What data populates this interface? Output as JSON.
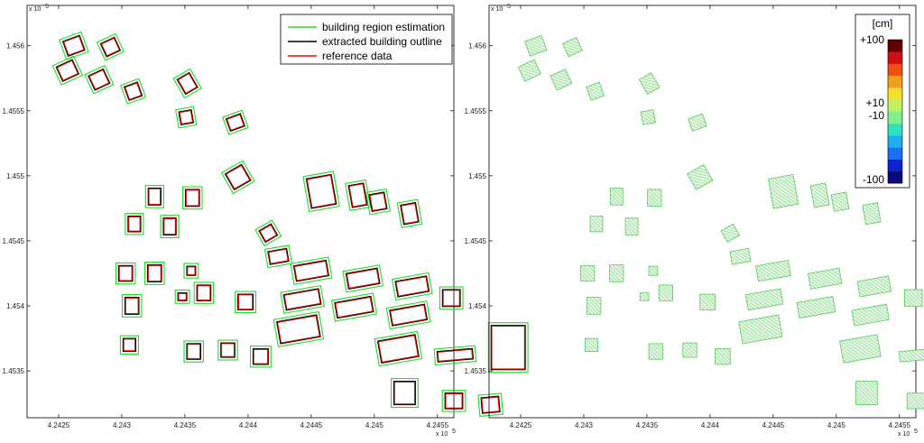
{
  "chart_data": [
    {
      "type": "scatter",
      "title": "",
      "xlabel": "",
      "ylabel": "",
      "x_ticks": [
        "4.2425",
        "4.243",
        "4.2435",
        "4.244",
        "4.2445",
        "4.245",
        "4.2455"
      ],
      "y_ticks": [
        "1.456",
        "1.4555",
        "1.455",
        "1.4545",
        "1.454",
        "1.4535"
      ],
      "x_exponent": "x 10",
      "x_exponent_power": "5",
      "y_exponent": "x 10",
      "y_exponent_power": "5",
      "xlim": [
        424225,
        424563
      ],
      "ylim": [
        145314,
        145631
      ],
      "legend_position": "top-right",
      "series": [
        {
          "name": "building region estimation",
          "color": "#22dd22"
        },
        {
          "name": "extracted building outline",
          "color": "#000000"
        },
        {
          "name": "reference data",
          "color": "#dd1111"
        }
      ],
      "buildings": [
        {
          "x": 424262,
          "y": 145600,
          "w": 14,
          "h": 12,
          "a": -20
        },
        {
          "x": 424291,
          "y": 145599,
          "w": 12,
          "h": 11,
          "a": -25
        },
        {
          "x": 424257,
          "y": 145581,
          "w": 14,
          "h": 12,
          "a": -25
        },
        {
          "x": 424282,
          "y": 145574,
          "w": 13,
          "h": 12,
          "a": -25
        },
        {
          "x": 424309,
          "y": 145565,
          "w": 11,
          "h": 11,
          "a": -20
        },
        {
          "x": 424352,
          "y": 145571,
          "w": 11,
          "h": 13,
          "a": -30
        },
        {
          "x": 424351,
          "y": 145545,
          "w": 10,
          "h": 10,
          "a": -10
        },
        {
          "x": 424390,
          "y": 145541,
          "w": 12,
          "h": 10,
          "a": -20
        },
        {
          "x": 424392,
          "y": 145499,
          "w": 15,
          "h": 14,
          "a": -30
        },
        {
          "x": 424326,
          "y": 145484,
          "w": 10,
          "h": 13,
          "a": 0
        },
        {
          "x": 424356,
          "y": 145483,
          "w": 11,
          "h": 13,
          "a": 0
        },
        {
          "x": 424310,
          "y": 145463,
          "w": 10,
          "h": 12,
          "a": 0
        },
        {
          "x": 424338,
          "y": 145461,
          "w": 10,
          "h": 13,
          "a": 0
        },
        {
          "x": 424416,
          "y": 145456,
          "w": 11,
          "h": 10,
          "a": -30
        },
        {
          "x": 424424,
          "y": 145438,
          "w": 15,
          "h": 10,
          "a": -10
        },
        {
          "x": 424303,
          "y": 145425,
          "w": 11,
          "h": 12,
          "a": 0
        },
        {
          "x": 424326,
          "y": 145425,
          "w": 11,
          "h": 13,
          "a": 0
        },
        {
          "x": 424355,
          "y": 145427,
          "w": 7,
          "h": 7,
          "a": 0
        },
        {
          "x": 424365,
          "y": 145410,
          "w": 11,
          "h": 12,
          "a": 0
        },
        {
          "x": 424348,
          "y": 145407,
          "w": 7,
          "h": 6,
          "a": 0
        },
        {
          "x": 424308,
          "y": 145400,
          "w": 11,
          "h": 13,
          "a": 0
        },
        {
          "x": 424398,
          "y": 145403,
          "w": 12,
          "h": 12,
          "a": 0
        },
        {
          "x": 424306,
          "y": 145370,
          "w": 10,
          "h": 10,
          "a": 0
        },
        {
          "x": 424357,
          "y": 145365,
          "w": 11,
          "h": 12,
          "a": 0
        },
        {
          "x": 424384,
          "y": 145366,
          "w": 11,
          "h": 11,
          "a": 0
        },
        {
          "x": 424410,
          "y": 145361,
          "w": 12,
          "h": 12,
          "a": 0
        },
        {
          "x": 424458,
          "y": 145488,
          "w": 20,
          "h": 23,
          "a": -10
        },
        {
          "x": 424487,
          "y": 145485,
          "w": 12,
          "h": 17,
          "a": -10
        },
        {
          "x": 424503,
          "y": 145480,
          "w": 12,
          "h": 13,
          "a": -10
        },
        {
          "x": 424528,
          "y": 145471,
          "w": 12,
          "h": 15,
          "a": -10
        },
        {
          "x": 424450,
          "y": 145427,
          "w": 26,
          "h": 12,
          "a": -10
        },
        {
          "x": 424491,
          "y": 145421,
          "w": 25,
          "h": 12,
          "a": -10
        },
        {
          "x": 424530,
          "y": 145415,
          "w": 25,
          "h": 12,
          "a": -10
        },
        {
          "x": 424443,
          "y": 145405,
          "w": 28,
          "h": 12,
          "a": -10
        },
        {
          "x": 424484,
          "y": 145399,
          "w": 29,
          "h": 12,
          "a": -10
        },
        {
          "x": 424527,
          "y": 145393,
          "w": 28,
          "h": 12,
          "a": -10
        },
        {
          "x": 424440,
          "y": 145382,
          "w": 32,
          "h": 17,
          "a": -10
        },
        {
          "x": 424561,
          "y": 145406,
          "w": 14,
          "h": 13,
          "a": 0
        },
        {
          "x": 424519,
          "y": 145367,
          "w": 30,
          "h": 17,
          "a": -10
        },
        {
          "x": 424564,
          "y": 145362,
          "w": 28,
          "h": 8,
          "a": -5
        },
        {
          "x": 424606,
          "y": 145368,
          "w": 27,
          "h": 34,
          "a": 0
        },
        {
          "x": 424524,
          "y": 145333,
          "w": 17,
          "h": 18,
          "a": 0
        },
        {
          "x": 424563,
          "y": 145327,
          "w": 14,
          "h": 12,
          "a": 0
        },
        {
          "x": 424592,
          "y": 145324,
          "w": 14,
          "h": 12,
          "a": -5
        }
      ]
    },
    {
      "type": "heatmap",
      "title": "",
      "xlabel": "",
      "ylabel": "",
      "x_ticks": [
        "4.2425",
        "4.243",
        "4.2435",
        "4.244",
        "4.2445",
        "4.245",
        "4.2455"
      ],
      "y_ticks": [
        "1.456",
        "1.4555",
        "1.455",
        "1.4545",
        "1.454",
        "1.4535"
      ],
      "x_exponent": "x 10",
      "x_exponent_power": "5",
      "y_exponent": "x 10",
      "y_exponent_power": "5",
      "xlim": [
        424225,
        424563
      ],
      "ylim": [
        145314,
        145631
      ],
      "colorbar": {
        "unit": "[cm]",
        "labels": [
          "+100",
          "+10",
          "-10",
          "-100"
        ],
        "range": [
          -100,
          100
        ],
        "colors": [
          "#0a0a7a",
          "#1020d0",
          "#1a70f0",
          "#20b0f0",
          "#30e0c0",
          "#80f090",
          "#c0f060",
          "#f0e030",
          "#f0a020",
          "#f05010",
          "#d01010",
          "#600000"
        ]
      }
    }
  ]
}
